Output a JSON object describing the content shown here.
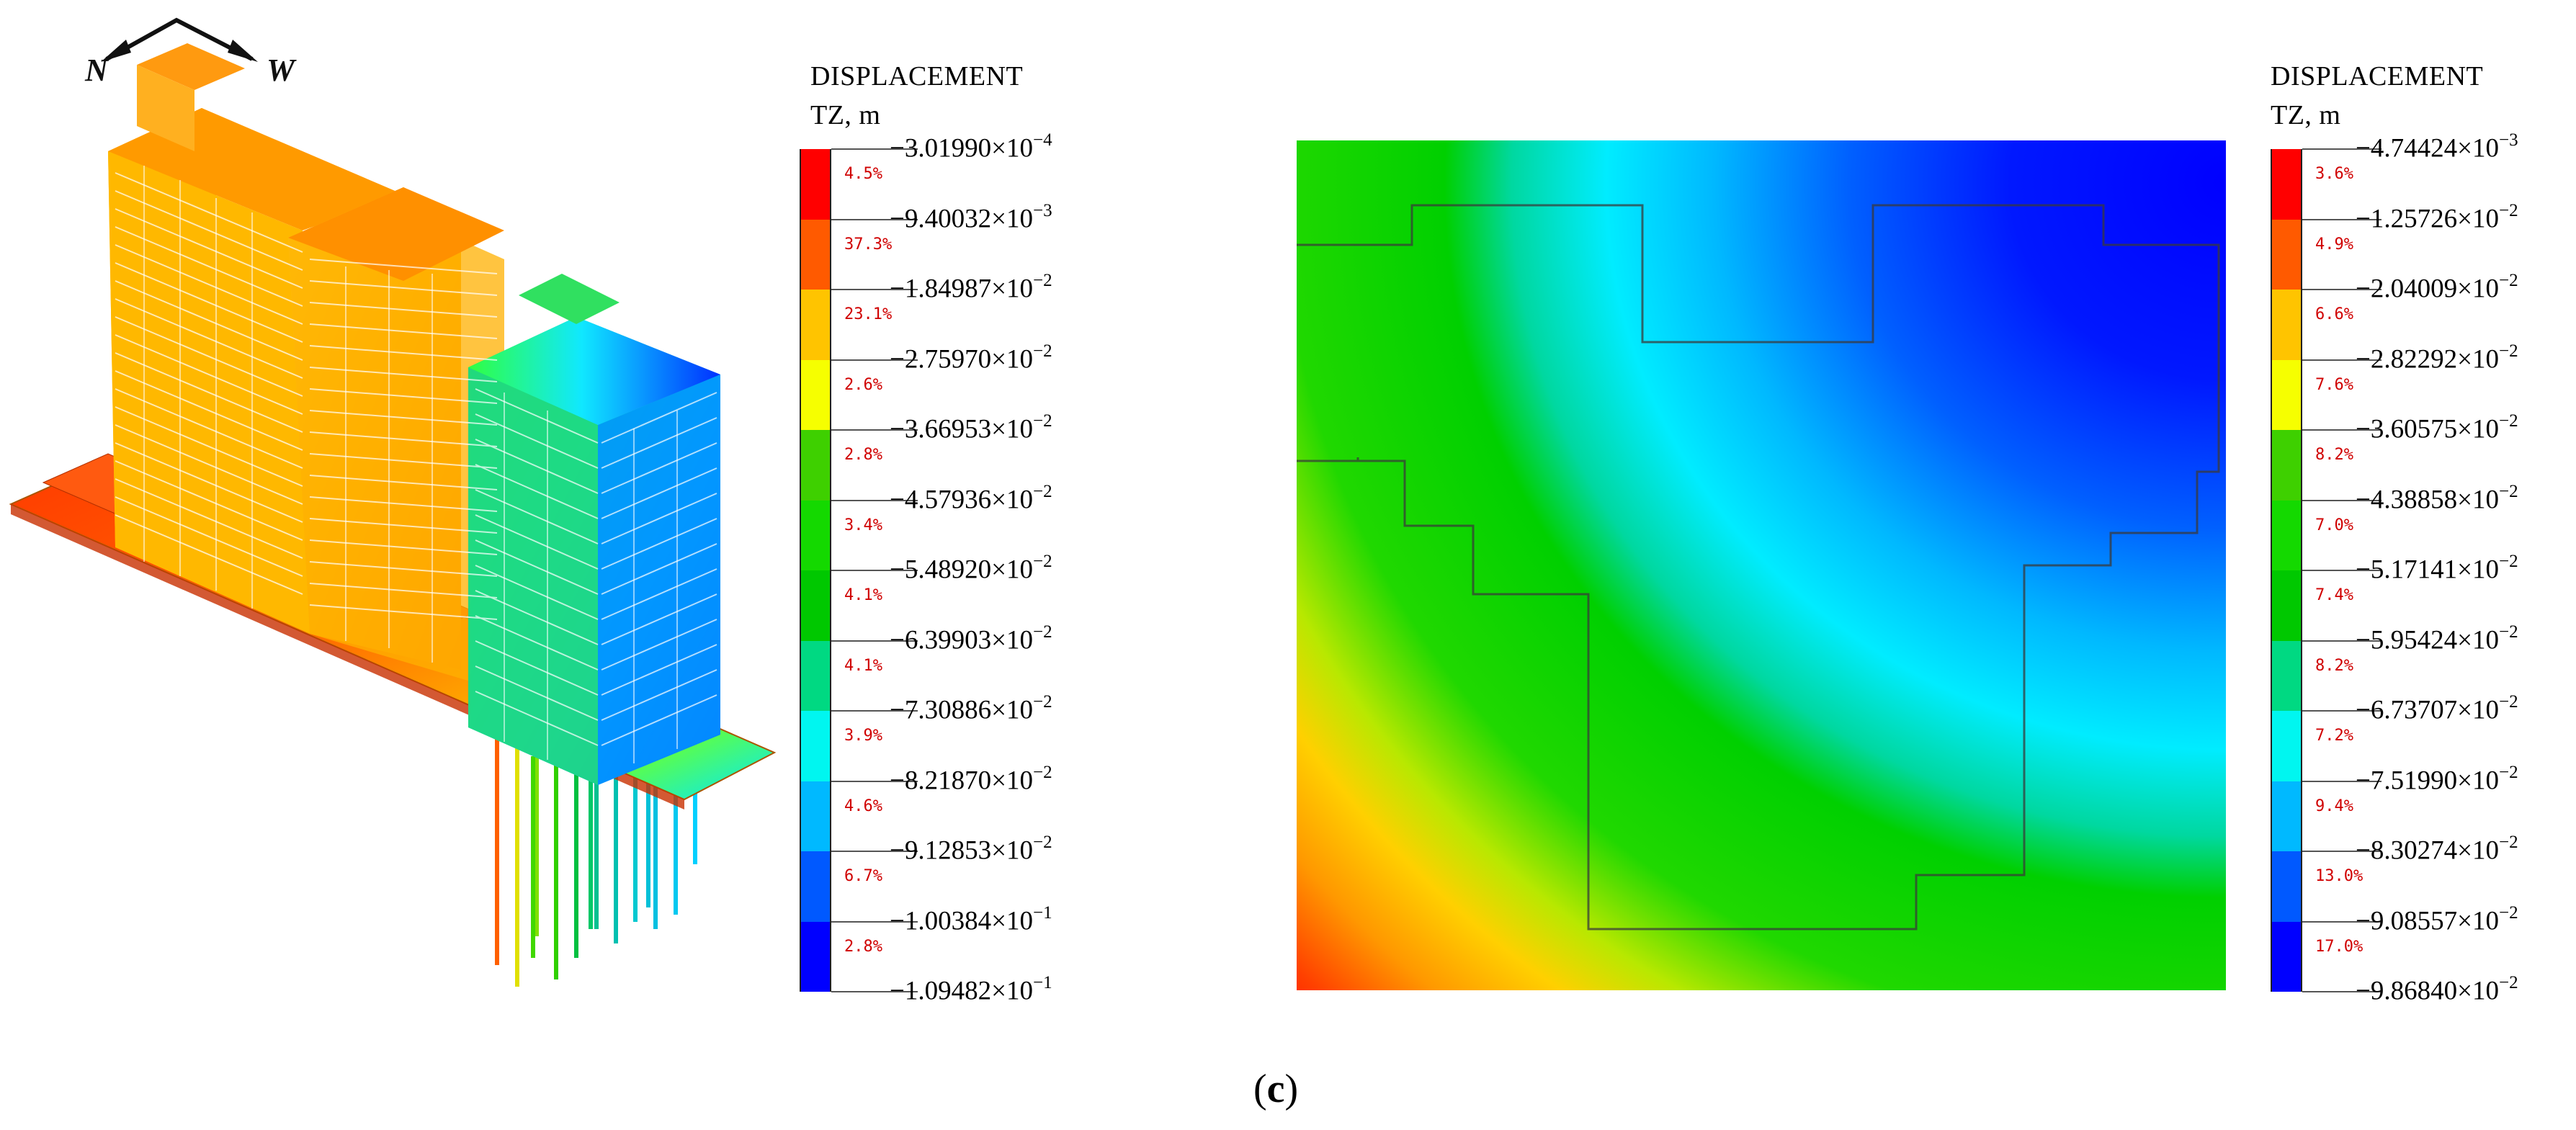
{
  "figure": {
    "caption_open": "(",
    "caption_letter": "c",
    "caption_close": ")"
  },
  "compass": {
    "north": "N",
    "west": "W"
  },
  "legend_left": {
    "title_line1": "DISPLACEMENT",
    "title_line2": "TZ, m",
    "colors": [
      "#ff0000",
      "#ff5a00",
      "#ffc400",
      "#f6ff00",
      "#3ed000",
      "#14d900",
      "#00c800",
      "#00d982",
      "#00f6f0",
      "#00b9ff",
      "#0059ff",
      "#0000ff"
    ],
    "percents": [
      "4.5%",
      "37.3%",
      "23.1%",
      "2.6%",
      "2.8%",
      "3.4%",
      "4.1%",
      "4.1%",
      "3.9%",
      "4.6%",
      "6.7%",
      "2.8%"
    ],
    "values": [
      {
        "m": "−3.01990",
        "e": "−4"
      },
      {
        "m": "−9.40032",
        "e": "−3"
      },
      {
        "m": "−1.84987",
        "e": "−2"
      },
      {
        "m": "−2.75970",
        "e": "−2"
      },
      {
        "m": "−3.66953",
        "e": "−2"
      },
      {
        "m": "−4.57936",
        "e": "−2"
      },
      {
        "m": "−5.48920",
        "e": "−2"
      },
      {
        "m": "−6.39903",
        "e": "−2"
      },
      {
        "m": "−7.30886",
        "e": "−2"
      },
      {
        "m": "−8.21870",
        "e": "−2"
      },
      {
        "m": "−9.12853",
        "e": "−2"
      },
      {
        "m": "−1.00384",
        "e": "−1"
      },
      {
        "m": "−1.09482",
        "e": "−1"
      }
    ]
  },
  "legend_right": {
    "title_line1": "DISPLACEMENT",
    "title_line2": "TZ, m",
    "colors": [
      "#ff0000",
      "#ff5a00",
      "#ffc400",
      "#f6ff00",
      "#3ed000",
      "#14d900",
      "#00c800",
      "#00d982",
      "#00f6f0",
      "#00b9ff",
      "#0059ff",
      "#0000ff"
    ],
    "percents": [
      "3.6%",
      "4.9%",
      "6.6%",
      "7.6%",
      "8.2%",
      "7.0%",
      "7.4%",
      "8.2%",
      "7.2%",
      "9.4%",
      "13.0%",
      "17.0%"
    ],
    "values": [
      {
        "m": "−4.74424",
        "e": "−3"
      },
      {
        "m": "−1.25726",
        "e": "−2"
      },
      {
        "m": "−2.04009",
        "e": "−2"
      },
      {
        "m": "−2.82292",
        "e": "−2"
      },
      {
        "m": "−3.60575",
        "e": "−2"
      },
      {
        "m": "−4.38858",
        "e": "−2"
      },
      {
        "m": "−5.17141",
        "e": "−2"
      },
      {
        "m": "−5.95424",
        "e": "−2"
      },
      {
        "m": "−6.73707",
        "e": "−2"
      },
      {
        "m": "−7.51990",
        "e": "−2"
      },
      {
        "m": "−8.30274",
        "e": "−2"
      },
      {
        "m": "−9.08557",
        "e": "−2"
      },
      {
        "m": "−9.86840",
        "e": "−2"
      }
    ]
  }
}
